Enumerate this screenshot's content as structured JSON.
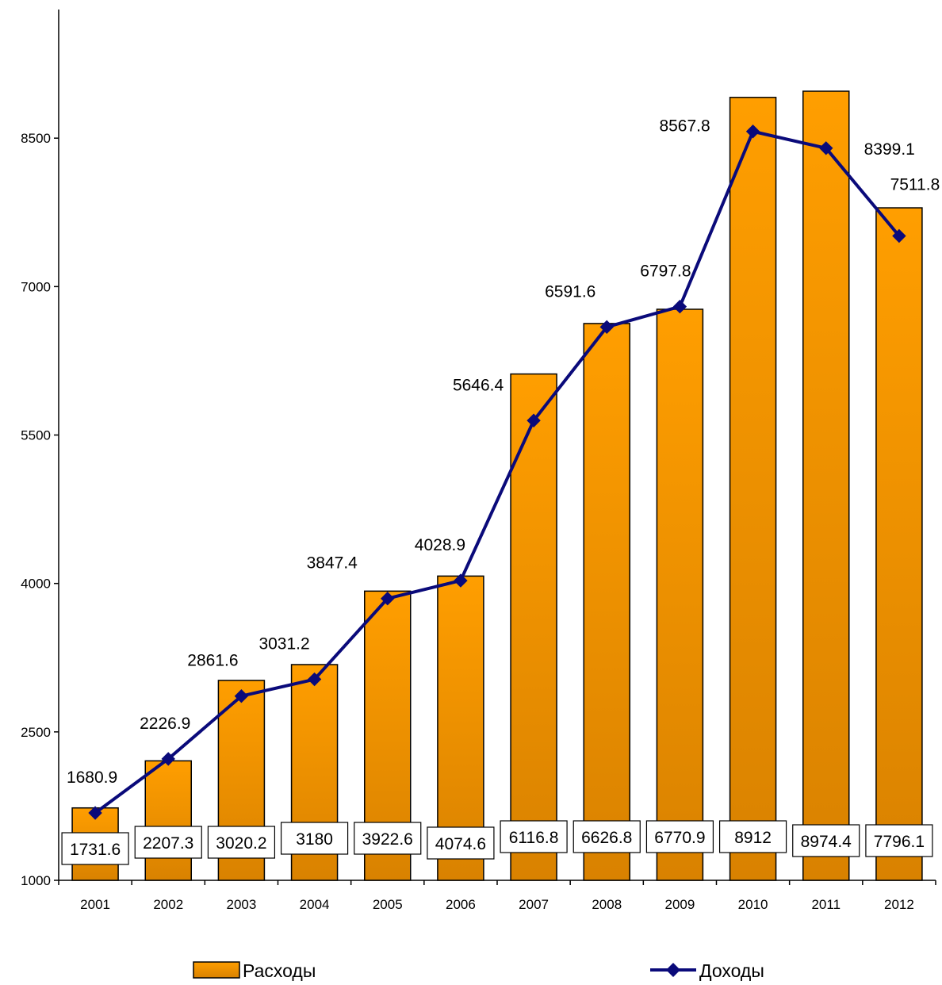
{
  "chart_data": {
    "type": "bar",
    "categories": [
      "2001",
      "2002",
      "2003",
      "2004",
      "2005",
      "2006",
      "2007",
      "2008",
      "2009",
      "2010",
      "2011",
      "2012"
    ],
    "series": [
      {
        "name": "Расходы",
        "type": "bar",
        "color": "#f39c12",
        "values": [
          1731.6,
          2207.3,
          3020.2,
          3180,
          3922.6,
          4074.6,
          6116.8,
          6626.8,
          6770.9,
          8912,
          8974.4,
          7796.1
        ]
      },
      {
        "name": "Доходы",
        "type": "line",
        "color": "#0a0a7a",
        "marker": "diamond",
        "values": [
          1680.9,
          2226.9,
          2861.6,
          3031.2,
          3847.4,
          4028.9,
          5646.4,
          6591.6,
          6797.8,
          8567.8,
          8399.1,
          7511.8
        ]
      }
    ],
    "y_ticks": [
      "1000",
      "2500",
      "4000",
      "5500",
      "7000",
      "8500"
    ],
    "ylim": [
      1000,
      9800
    ],
    "grid": false,
    "legend_position": "bottom",
    "bar_labels": [
      "1731.6",
      "2207.3",
      "3020.2",
      "3180",
      "3922.6",
      "4074.6",
      "6116.8",
      "6626.8",
      "6770.9",
      "8912",
      "8974.4",
      "7796.1"
    ],
    "line_labels": [
      "1680.9",
      "2226.9",
      "2861.6",
      "3031.2",
      "3847.4",
      "4028.9",
      "5646.4",
      "6591.6",
      "6797.8",
      "8567.8",
      "8399.1",
      "7511.8"
    ],
    "legend": {
      "bars_label": "Расходы",
      "line_label": "Доходы"
    }
  }
}
